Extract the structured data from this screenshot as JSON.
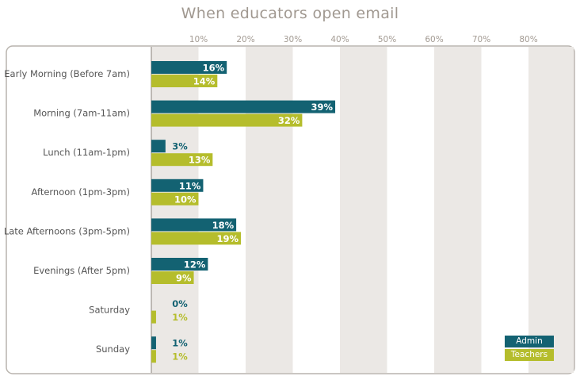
{
  "chart_data": {
    "type": "bar",
    "orientation": "horizontal",
    "title": "When educators open email",
    "categories": [
      "Early Morning (Before 7am)",
      "Morning (7am-11am)",
      "Lunch (11am-1pm)",
      "Afternoon (1pm-3pm)",
      "Late Afternoons (3pm-5pm)",
      "Evenings (After 5pm)",
      "Saturday",
      "Sunday"
    ],
    "series": [
      {
        "name": "Admin",
        "color": "#136272",
        "values": [
          16,
          39,
          3,
          11,
          18,
          12,
          0,
          1
        ]
      },
      {
        "name": "Teachers",
        "color": "#b5bd2c",
        "values": [
          14,
          32,
          13,
          10,
          19,
          9,
          1,
          1
        ]
      }
    ],
    "value_labels": {
      "Admin": [
        "16%",
        "39%",
        "3%",
        "11%",
        "18%",
        "12%",
        "0%",
        "1%"
      ],
      "Teachers": [
        "14%",
        "32%",
        "13%",
        "10%",
        "19%",
        "9%",
        "1%",
        "1%"
      ]
    },
    "xticks": [
      "10%",
      "20%",
      "30%",
      "40%",
      "50%",
      "60%",
      "70%",
      "80%"
    ],
    "xlim": [
      0,
      90
    ],
    "legend_position": "bottom-right",
    "grid": "alternating vertical bands"
  }
}
